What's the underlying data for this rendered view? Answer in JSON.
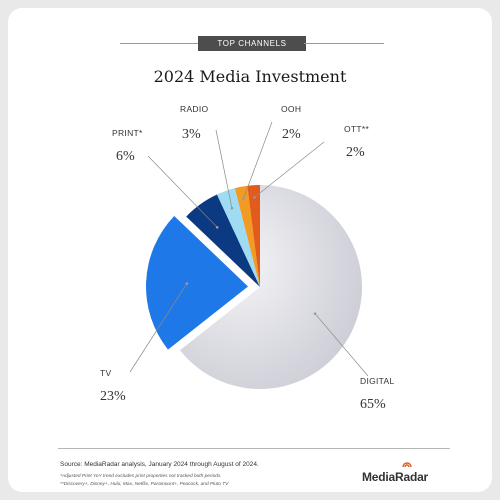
{
  "header": {
    "tag": "TOP CHANNELS"
  },
  "chart_data": {
    "type": "pie",
    "title": "2024 Media Investment",
    "slices": [
      {
        "label": "DIGITAL",
        "value_label": "65%",
        "value": 65,
        "color": "#d5d6dd"
      },
      {
        "label": "TV",
        "value_label": "23%",
        "value": 23,
        "color": "#1f78e8"
      },
      {
        "label": "PRINT*",
        "value_label": "6%",
        "value": 6,
        "color": "#0b3a83"
      },
      {
        "label": "RADIO",
        "value_label": "3%",
        "value": 3,
        "color": "#9fdcf3"
      },
      {
        "label": "OOH",
        "value_label": "2%",
        "value": 2,
        "color": "#f29a22"
      },
      {
        "label": "OTT**",
        "value_label": "2%",
        "value": 2,
        "color": "#e35a1d"
      }
    ]
  },
  "footer": {
    "source": "Source: MediaRadar analysis, January 2024 through August of 2024.",
    "note1": "*Adjusted Print YoY trend excludes print properties not tracked both periods.",
    "note2": "**Discovery+, Disney+, Hulu, Max, Netflix, Paramount+, Peacock, and Pluto TV",
    "brand": "MediaRadar"
  },
  "colors": {
    "accent": "#4d4d4d",
    "brand_mark": "#e35a1d"
  }
}
